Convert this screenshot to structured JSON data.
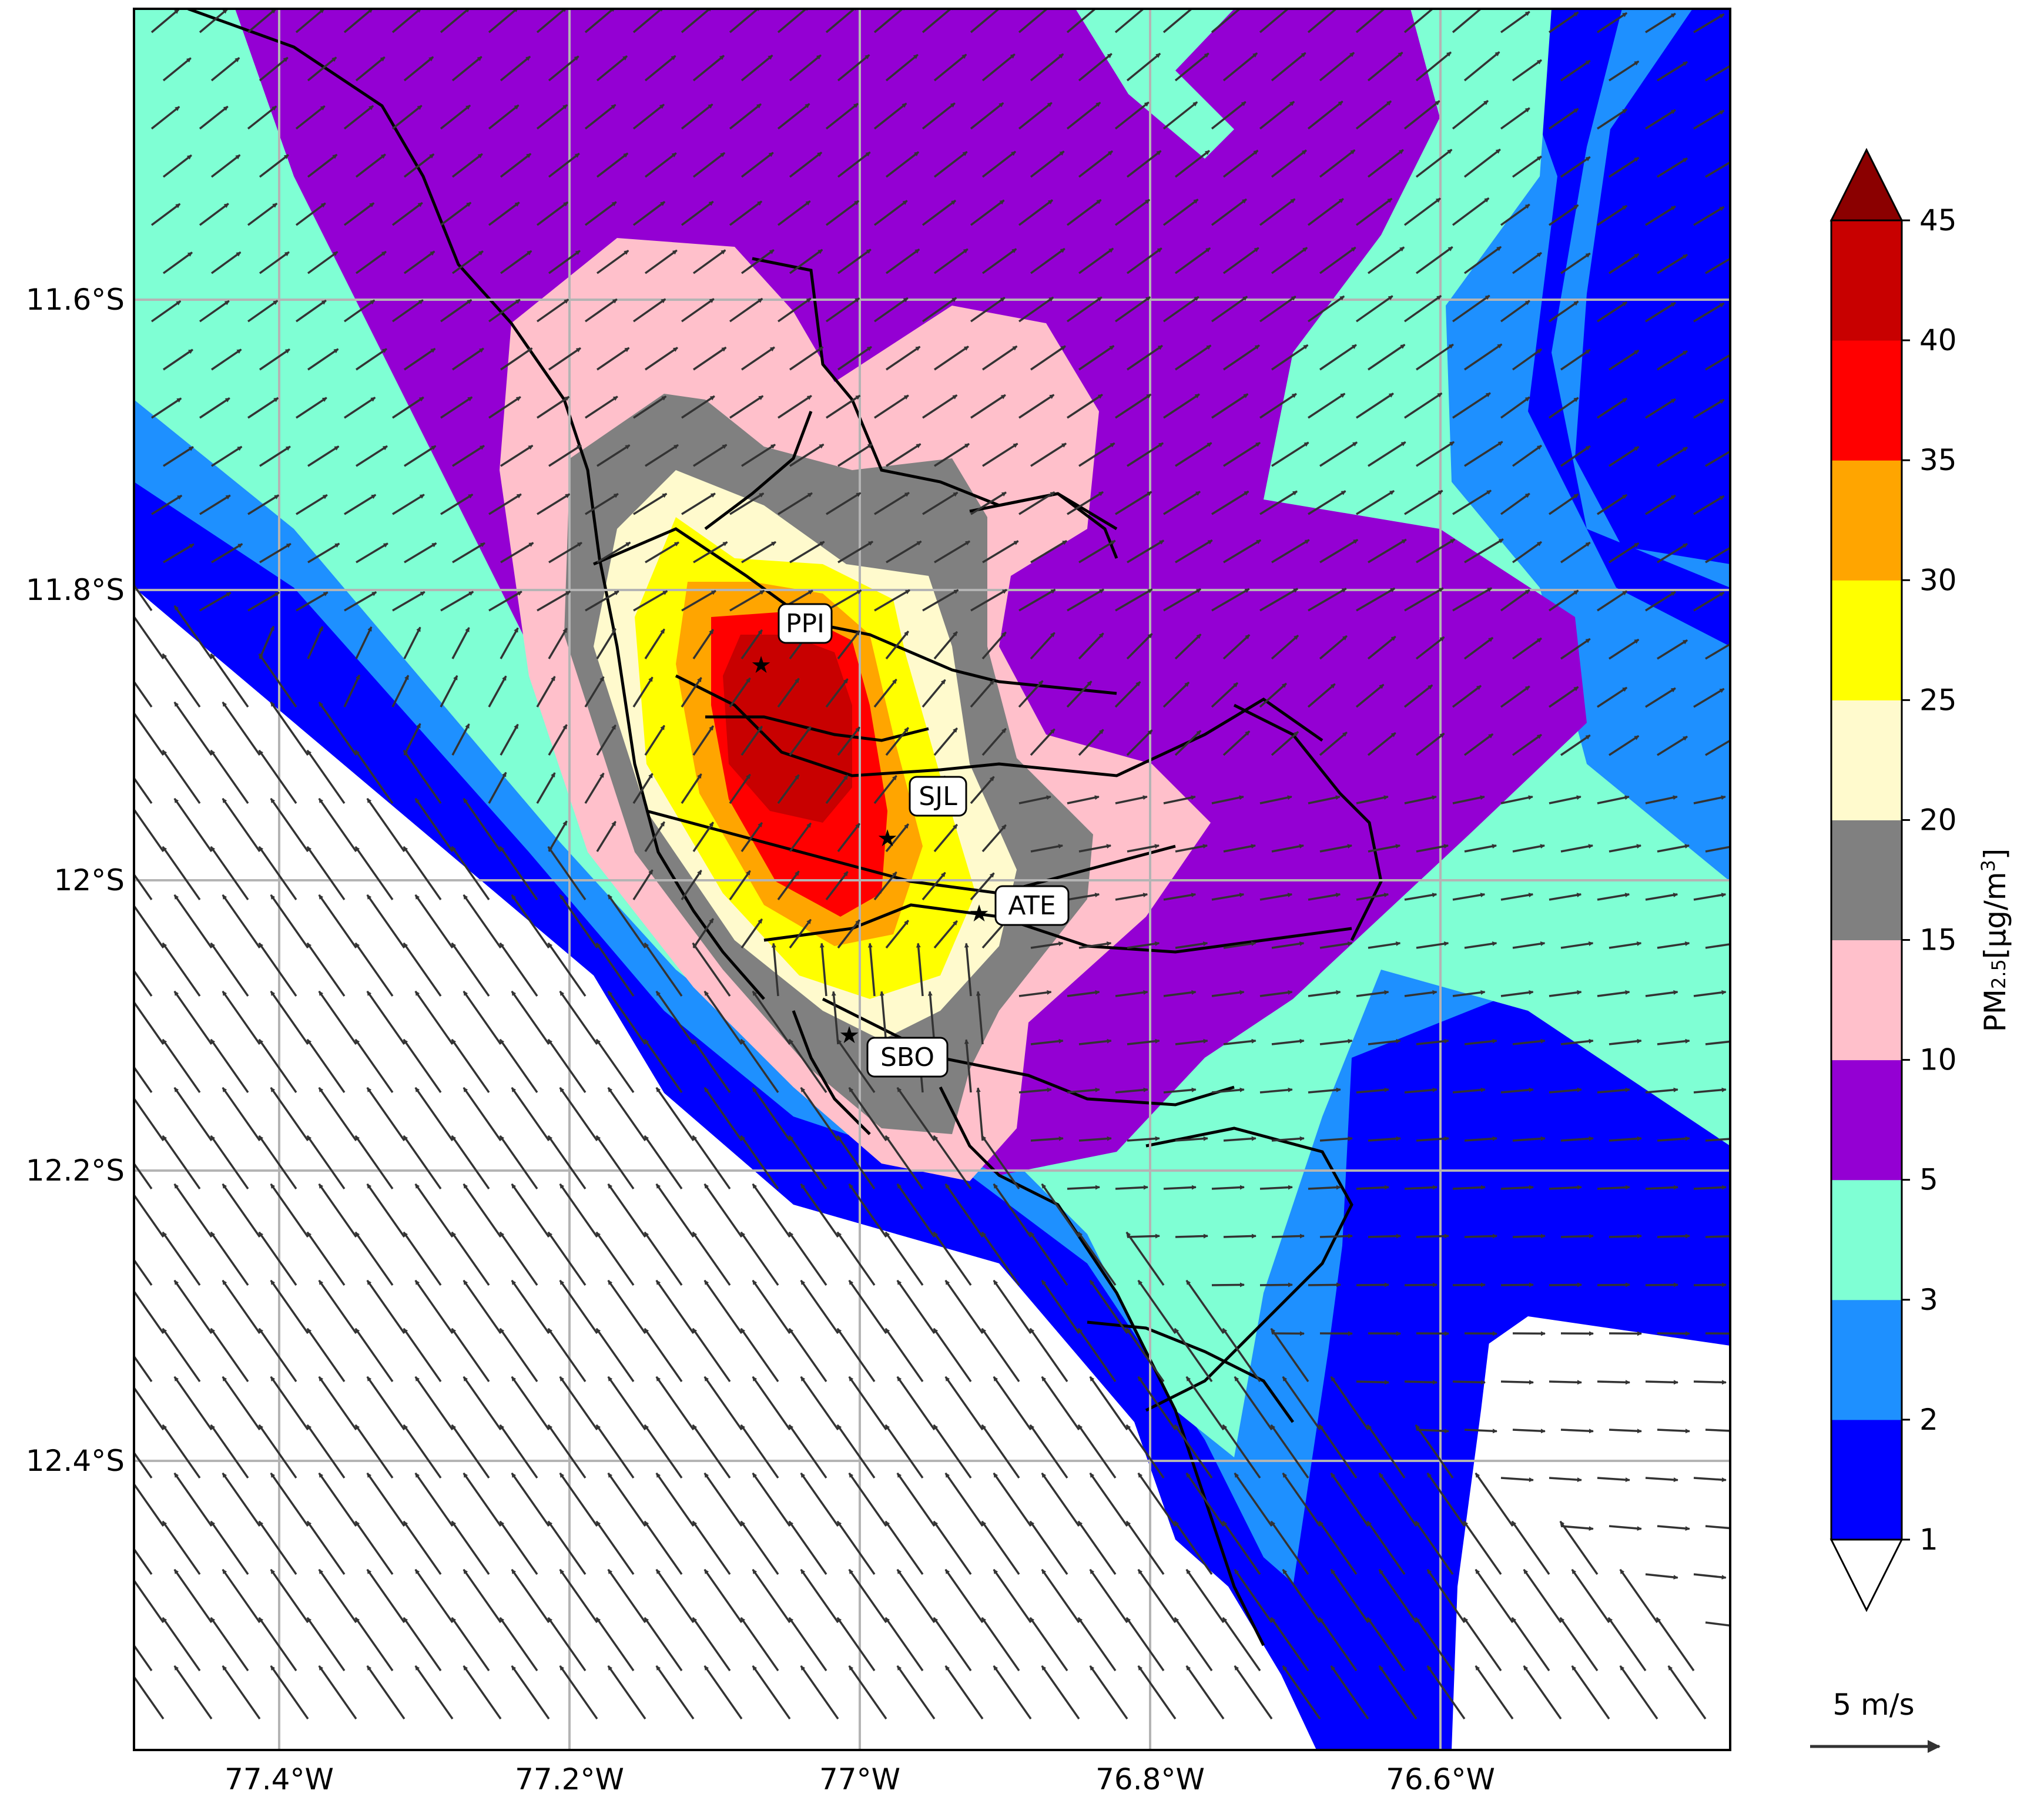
{
  "map": {
    "lon_range": [
      -77.5,
      -76.4
    ],
    "lat_range": [
      -12.6,
      -11.4
    ],
    "lon_ticks": [
      {
        "value": -77.4,
        "label": "77.4°W"
      },
      {
        "value": -77.2,
        "label": "77.2°W"
      },
      {
        "value": -77.0,
        "label": "77°W"
      },
      {
        "value": -76.8,
        "label": "76.8°W"
      },
      {
        "value": -76.6,
        "label": "76.6°W"
      }
    ],
    "lat_ticks": [
      {
        "value": -11.6,
        "label": "11.6°S"
      },
      {
        "value": -11.8,
        "label": "11.8°S"
      },
      {
        "value": -12.0,
        "label": "12°S"
      },
      {
        "value": -12.2,
        "label": "12.2°S"
      },
      {
        "value": -12.4,
        "label": "12.4°S"
      }
    ],
    "grid": true
  },
  "stations": [
    {
      "code": "PPI",
      "lon": -77.07,
      "lat": -11.85
    },
    {
      "code": "SJL",
      "lon": -76.98,
      "lat": -11.98
    },
    {
      "code": "ATE",
      "lon": -76.92,
      "lat": -12.02
    },
    {
      "code": "SBO",
      "lon": -77.0,
      "lat": -12.11
    }
  ],
  "colorbar": {
    "label_main": "PM",
    "label_sub": "2.5",
    "label_unit": "[µg/m",
    "label_sup": "3",
    "label_close": "]",
    "levels": [
      "1",
      "2",
      "3",
      "5",
      "10",
      "15",
      "20",
      "25",
      "30",
      "35",
      "40",
      "45"
    ],
    "colors": [
      "#0000ff",
      "#1e90ff",
      "#7fffd4",
      "#9400d3",
      "#ffc0cb",
      "#808080",
      "#fffacd",
      "#ffff00",
      "#ffa500",
      "#ff0000",
      "#c80000"
    ],
    "under_color": "#ffffff",
    "over_color": "#8b0000"
  },
  "wind_reference": {
    "label": "5 m/s",
    "speed": 5
  }
}
